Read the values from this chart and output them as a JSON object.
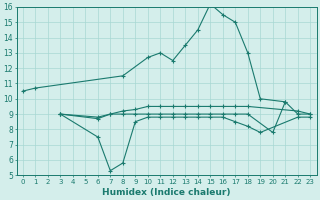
{
  "xlabel": "Humidex (Indice chaleur)",
  "xlim": [
    -0.5,
    23.5
  ],
  "ylim": [
    5,
    16
  ],
  "yticks": [
    5,
    6,
    7,
    8,
    9,
    10,
    11,
    12,
    13,
    14,
    15,
    16
  ],
  "xticks": [
    0,
    1,
    2,
    3,
    4,
    5,
    6,
    7,
    8,
    9,
    10,
    11,
    12,
    13,
    14,
    15,
    16,
    17,
    18,
    19,
    20,
    21,
    22,
    23
  ],
  "line_color": "#1a7a6e",
  "bg_color": "#d4eeeb",
  "grid_color": "#a8d8d4",
  "lines": [
    {
      "x": [
        0,
        1,
        8,
        10,
        11,
        12,
        13,
        14,
        15,
        16,
        17,
        18,
        19,
        21
      ],
      "y": [
        10.5,
        10.7,
        11.5,
        12.7,
        13.0,
        12.5,
        13.5,
        14.5,
        16.2,
        15.5,
        15.0,
        13.0,
        10.0,
        9.8
      ]
    },
    {
      "x": [
        3,
        6,
        7,
        8,
        9,
        10,
        11,
        12,
        13,
        14,
        15,
        16,
        17,
        18,
        22,
        23
      ],
      "y": [
        9.0,
        8.7,
        9.0,
        9.2,
        9.3,
        9.5,
        9.5,
        9.5,
        9.5,
        9.5,
        9.5,
        9.5,
        9.5,
        9.5,
        9.2,
        9.0
      ]
    },
    {
      "x": [
        3,
        6,
        7,
        8,
        9,
        10,
        11,
        12,
        13,
        14,
        15,
        16,
        17,
        18,
        19,
        22,
        23
      ],
      "y": [
        9.0,
        7.5,
        5.3,
        5.8,
        8.5,
        8.8,
        8.8,
        8.8,
        8.8,
        8.8,
        8.8,
        8.8,
        8.5,
        8.2,
        7.8,
        8.8,
        8.8
      ]
    },
    {
      "x": [
        3,
        6,
        7,
        8,
        9,
        10,
        11,
        12,
        13,
        14,
        15,
        16,
        17,
        18,
        20,
        21,
        22,
        23
      ],
      "y": [
        9.0,
        8.8,
        9.0,
        9.0,
        9.0,
        9.0,
        9.0,
        9.0,
        9.0,
        9.0,
        9.0,
        9.0,
        9.0,
        9.0,
        7.8,
        9.8,
        9.0,
        9.0
      ]
    }
  ]
}
